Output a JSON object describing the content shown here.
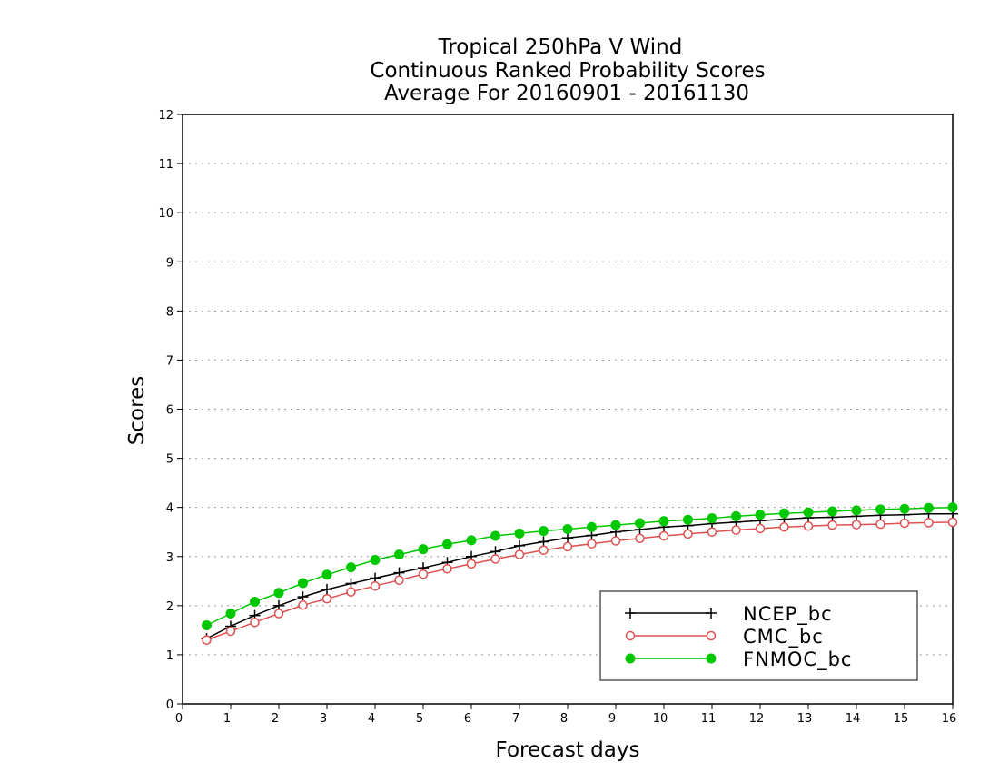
{
  "chart_data": {
    "type": "line",
    "title_lines": [
      "Tropical 250hPa V Wind",
      "Continuous Ranked Probability Scores",
      "Average For 20160901 - 20161130"
    ],
    "xlabel": "Forecast days",
    "ylabel": "Scores",
    "xlim": [
      0,
      16
    ],
    "ylim": [
      0,
      12
    ],
    "xticks": [
      "0",
      "1",
      "2",
      "3",
      "4",
      "5",
      "6",
      "7",
      "8",
      "9",
      "10",
      "11",
      "12",
      "13",
      "14",
      "15",
      "16"
    ],
    "yticks": [
      "0",
      "1",
      "2",
      "3",
      "4",
      "5",
      "6",
      "7",
      "8",
      "9",
      "10",
      "11",
      "12"
    ],
    "grid": "horizontal dotted",
    "legend_position": "bottom-right",
    "x": [
      0.5,
      1,
      1.5,
      2,
      2.5,
      3,
      3.5,
      4,
      4.5,
      5,
      5.5,
      6,
      6.5,
      7,
      7.5,
      8,
      8.5,
      9,
      9.5,
      10,
      10.5,
      11,
      11.5,
      12,
      12.5,
      13,
      13.5,
      14,
      14.5,
      15,
      15.5,
      16
    ],
    "series": [
      {
        "name": "NCEP_bc",
        "color": "#000000",
        "marker": "plus",
        "values": [
          1.33,
          1.58,
          1.8,
          2.0,
          2.18,
          2.33,
          2.45,
          2.56,
          2.67,
          2.77,
          2.88,
          3.0,
          3.1,
          3.22,
          3.3,
          3.38,
          3.43,
          3.5,
          3.55,
          3.6,
          3.63,
          3.67,
          3.7,
          3.73,
          3.76,
          3.79,
          3.8,
          3.82,
          3.84,
          3.85,
          3.87,
          3.87
        ]
      },
      {
        "name": "CMC_bc",
        "color": "#e05050",
        "marker": "open-circle",
        "values": [
          1.3,
          1.48,
          1.66,
          1.84,
          2.01,
          2.14,
          2.28,
          2.4,
          2.52,
          2.64,
          2.75,
          2.85,
          2.95,
          3.04,
          3.13,
          3.2,
          3.26,
          3.32,
          3.37,
          3.42,
          3.46,
          3.5,
          3.54,
          3.57,
          3.6,
          3.62,
          3.64,
          3.65,
          3.66,
          3.68,
          3.69,
          3.7
        ]
      },
      {
        "name": "FNMOC_bc",
        "color": "#00c800",
        "marker": "filled-circle",
        "values": [
          1.6,
          1.84,
          2.08,
          2.26,
          2.46,
          2.63,
          2.78,
          2.93,
          3.04,
          3.15,
          3.25,
          3.33,
          3.42,
          3.47,
          3.52,
          3.56,
          3.6,
          3.64,
          3.68,
          3.72,
          3.75,
          3.78,
          3.82,
          3.85,
          3.88,
          3.9,
          3.92,
          3.94,
          3.96,
          3.97,
          3.99,
          4.0
        ]
      }
    ]
  }
}
